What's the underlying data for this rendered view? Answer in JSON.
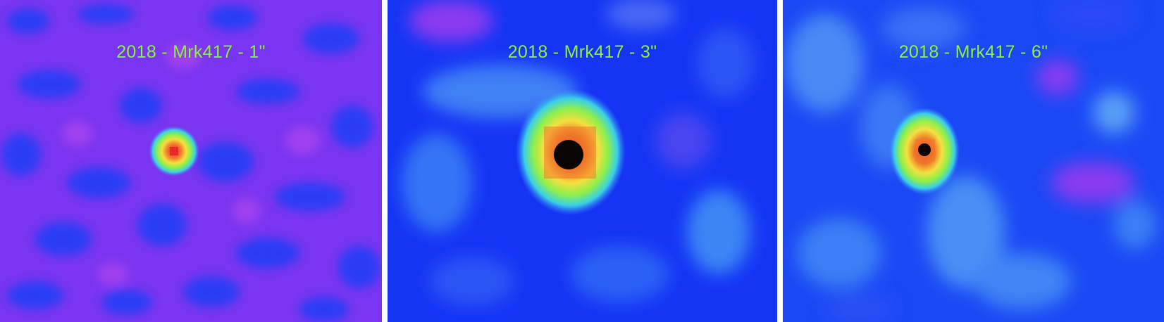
{
  "colors": {
    "label": "#8ef04a",
    "panel_1_background": "#7a35f0",
    "panel_2_background": "#1535f5",
    "panel_3_background": "#1a48f5"
  },
  "panels": [
    {
      "label": "2018 - Mrk417 - 1\""
    },
    {
      "label": "2018 - Mrk417 - 3\""
    },
    {
      "label": "2018 - Mrk417 - 6\""
    }
  ]
}
